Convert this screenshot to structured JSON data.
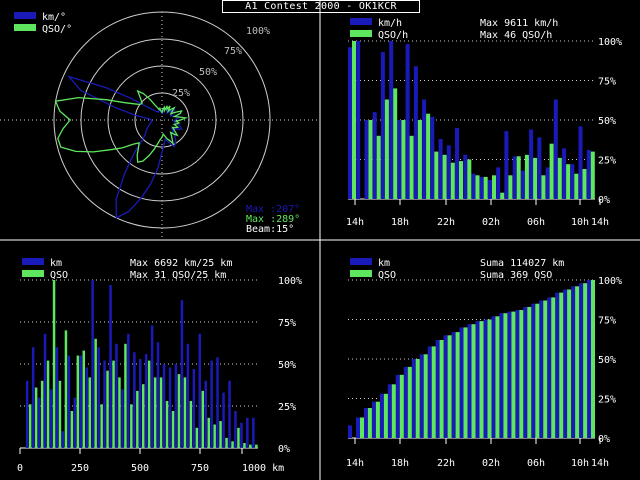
{
  "app": {
    "title": "A1 Contest 2000 - OK1KCR"
  },
  "colors": {
    "blue": "#1a1ab8",
    "green": "#5ee65e",
    "grid": "#cfcfcf",
    "text": "#ffffff",
    "background": "#000000"
  },
  "polar": {
    "legend": [
      {
        "label": "km/°",
        "color": "#1a1ab8"
      },
      {
        "label": "QSO/°",
        "color": "#5ee65e"
      }
    ],
    "ring_labels": [
      "100%",
      "75%",
      "50%",
      "25%"
    ],
    "max_km_label": "Max :207°",
    "max_qso_label": "Max :289°",
    "beam_label": "Beam:15°"
  },
  "hourly": {
    "legend": [
      {
        "label": "km/h",
        "color": "#1a1ab8"
      },
      {
        "label": "QSO/h",
        "color": "#5ee65e"
      }
    ],
    "max_lines": [
      "Max  9611 km/h",
      "Max   46 QSO/h"
    ],
    "y_labels": [
      "100%",
      "75%",
      "50%",
      "25%",
      "0%"
    ],
    "x_labels": [
      "14h",
      "18h",
      "22h",
      "02h",
      "06h",
      "10h",
      "14h"
    ]
  },
  "distance": {
    "legend": [
      {
        "label": "km",
        "color": "#1a1ab8"
      },
      {
        "label": "QSO",
        "color": "#5ee65e"
      }
    ],
    "max_lines": [
      "Max  6692 km/25 km",
      "Max   31 QSO/25 km"
    ],
    "y_labels": [
      "100%",
      "75%",
      "50%",
      "25%",
      "0%"
    ],
    "x_labels": [
      "0",
      "250",
      "500",
      "750",
      "1000 km"
    ]
  },
  "cumulative": {
    "legend": [
      {
        "label": "km",
        "color": "#1a1ab8"
      },
      {
        "label": "QSO",
        "color": "#5ee65e"
      }
    ],
    "sum_lines": [
      "Suma 114027 km",
      "Suma   369 QSO"
    ],
    "y_labels": [
      "100%",
      "75%",
      "50%",
      "25%",
      "0%"
    ],
    "x_labels": [
      "14h",
      "18h",
      "22h",
      "02h",
      "06h",
      "10h",
      "14h"
    ]
  },
  "chart_data": [
    {
      "type": "polar",
      "series": [
        {
          "name": "km/°",
          "r": [
            0.06,
            0.07,
            0.09,
            0.1,
            0.12,
            0.11,
            0.09,
            0.08,
            0.09,
            0.12,
            0.15,
            0.13,
            0.1,
            0.09,
            0.11,
            0.14,
            0.16,
            0.14,
            0.12,
            0.11,
            0.12,
            0.15,
            0.18,
            0.2,
            0.17,
            0.14,
            0.12,
            0.14,
            0.18,
            0.22,
            0.25,
            0.27,
            0.24,
            0.2,
            0.18,
            0.22,
            0.3,
            0.45,
            0.6,
            0.75,
            0.9,
            1.0,
            0.85,
            0.6,
            0.4,
            0.25,
            0.2,
            0.18,
            0.16,
            0.14,
            0.12,
            0.11,
            0.1,
            0.09,
            0.1,
            0.12,
            0.25,
            0.45,
            0.8,
            0.95,
            0.6,
            0.35,
            0.2,
            0.15,
            0.12,
            0.1,
            0.09,
            0.08,
            0.09,
            0.1,
            0.09,
            0.07
          ]
        },
        {
          "name": "QSO/°",
          "r": [
            0.07,
            0.1,
            0.12,
            0.09,
            0.14,
            0.11,
            0.15,
            0.1,
            0.13,
            0.16,
            0.12,
            0.1,
            0.14,
            0.2,
            0.18,
            0.12,
            0.16,
            0.22,
            0.17,
            0.13,
            0.16,
            0.14,
            0.12,
            0.16,
            0.14,
            0.12,
            0.15,
            0.2,
            0.17,
            0.14,
            0.18,
            0.24,
            0.2,
            0.18,
            0.15,
            0.13,
            0.16,
            0.18,
            0.22,
            0.28,
            0.35,
            0.42,
            0.45,
            0.4,
            0.34,
            0.3,
            0.35,
            0.45,
            0.55,
            0.7,
            0.85,
            0.97,
            0.98,
            0.92,
            0.85,
            0.95,
            1.0,
            0.8,
            0.55,
            0.38,
            0.3,
            0.25,
            0.24,
            0.28,
            0.35,
            0.3,
            0.22,
            0.15,
            0.12,
            0.1,
            0.11,
            0.08
          ]
        }
      ]
    },
    {
      "type": "bar",
      "x_labels": [
        "14h",
        "18h",
        "22h",
        "02h",
        "06h",
        "10h",
        "14h"
      ],
      "series": [
        {
          "name": "km/h",
          "values": [
            96,
            100,
            50,
            55,
            93,
            100,
            50,
            98,
            84,
            63,
            52,
            38,
            34,
            45,
            28,
            16,
            14,
            12,
            20,
            43,
            27,
            18,
            44,
            39,
            20,
            63,
            32,
            22,
            46,
            31
          ]
        },
        {
          "name": "QSO/h",
          "values": [
            100,
            0,
            50,
            40,
            63,
            70,
            50,
            40,
            50,
            54,
            30,
            28,
            23,
            24,
            25,
            15,
            14,
            15,
            4,
            15,
            27,
            28,
            26,
            15,
            35,
            26,
            22,
            16,
            19,
            30
          ]
        }
      ],
      "ylim": [
        0,
        100
      ]
    },
    {
      "type": "bar",
      "x_labels": [
        "0",
        "250",
        "500",
        "750",
        "1000 km"
      ],
      "xlim": [
        0,
        1000
      ],
      "series": [
        {
          "name": "km",
          "values": [
            0,
            40,
            60,
            30,
            68,
            35,
            60,
            10,
            55,
            30,
            55,
            48,
            100,
            60,
            52,
            97,
            62,
            35,
            68,
            57,
            53,
            56,
            73,
            63,
            50,
            48,
            50,
            88,
            62,
            47,
            68,
            40,
            52,
            54,
            33,
            40,
            22,
            15,
            18,
            18
          ]
        },
        {
          "name": "QSO",
          "values": [
            0,
            26,
            36,
            40,
            52,
            100,
            40,
            70,
            22,
            55,
            58,
            42,
            65,
            26,
            46,
            52,
            42,
            62,
            26,
            34,
            38,
            52,
            42,
            42,
            28,
            22,
            44,
            42,
            28,
            12,
            34,
            18,
            14,
            16,
            6,
            4,
            12,
            3,
            2,
            2
          ]
        }
      ],
      "ylim": [
        0,
        100
      ]
    },
    {
      "type": "bar",
      "x_labels": [
        "14h",
        "18h",
        "22h",
        "02h",
        "06h",
        "10h",
        "14h"
      ],
      "series": [
        {
          "name": "km",
          "values": [
            8,
            13,
            19,
            23,
            28,
            34,
            40,
            45,
            50,
            53,
            58,
            62,
            65,
            67,
            70,
            72,
            74,
            75,
            77,
            79,
            80,
            81,
            83,
            85,
            87,
            89,
            92,
            94,
            96,
            98,
            100
          ]
        },
        {
          "name": "QSO",
          "values": [
            0,
            13,
            19,
            23,
            28,
            34,
            40,
            45,
            50,
            53,
            58,
            62,
            65,
            67,
            70,
            72,
            74,
            75,
            77,
            79,
            80,
            81,
            83,
            85,
            87,
            89,
            92,
            94,
            96,
            98,
            100
          ]
        }
      ],
      "ylim": [
        0,
        100
      ]
    }
  ]
}
